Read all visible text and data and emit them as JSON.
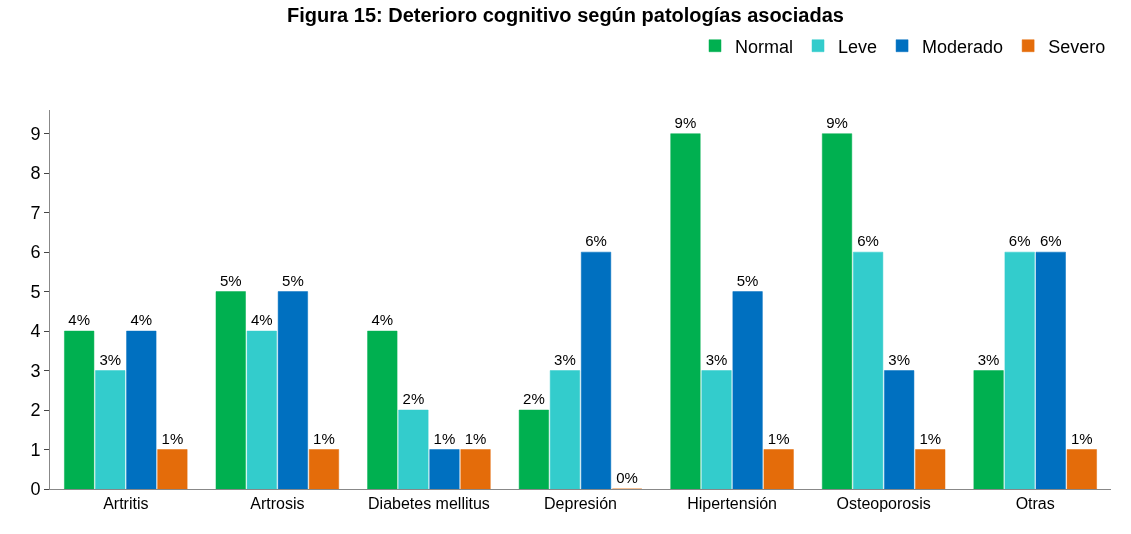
{
  "chart_data": {
    "type": "bar",
    "title": "Figura 15: Deterioro cognitivo según patologías asociadas",
    "categories": [
      "Artritis",
      "Artrosis",
      "Diabetes mellitus",
      "Depresión",
      "Hipertensión",
      "Osteoporosis",
      "Otras"
    ],
    "series": [
      {
        "name": "Normal",
        "color": "#00b050",
        "values": [
          4,
          5,
          4,
          2,
          9,
          9,
          3
        ],
        "value_labels": [
          "4%",
          "5%",
          "4%",
          "2%",
          "9%",
          "9%",
          "3%"
        ]
      },
      {
        "name": "Leve",
        "color": "#33cccc",
        "values": [
          3,
          4,
          2,
          3,
          3,
          6,
          6
        ],
        "value_labels": [
          "3%",
          "4%",
          "2%",
          "3%",
          "3%",
          "6%",
          "6%"
        ]
      },
      {
        "name": "Moderado",
        "color": "#0070c0",
        "values": [
          4,
          5,
          1,
          6,
          5,
          3,
          6
        ],
        "value_labels": [
          "4%",
          "5%",
          "1%",
          "6%",
          "5%",
          "3%",
          "6%"
        ]
      },
      {
        "name": "Severo",
        "color": "#e46c0a",
        "values": [
          1,
          1,
          1,
          0,
          1,
          1,
          1
        ],
        "value_labels": [
          "1%",
          "1%",
          "1%",
          "0%",
          "1%",
          "1%",
          "1%"
        ]
      }
    ],
    "ylim": [
      0,
      9.6
    ],
    "yticks": [
      0,
      1,
      2,
      3,
      4,
      5,
      6,
      7,
      8,
      9
    ],
    "legend": "top right"
  }
}
